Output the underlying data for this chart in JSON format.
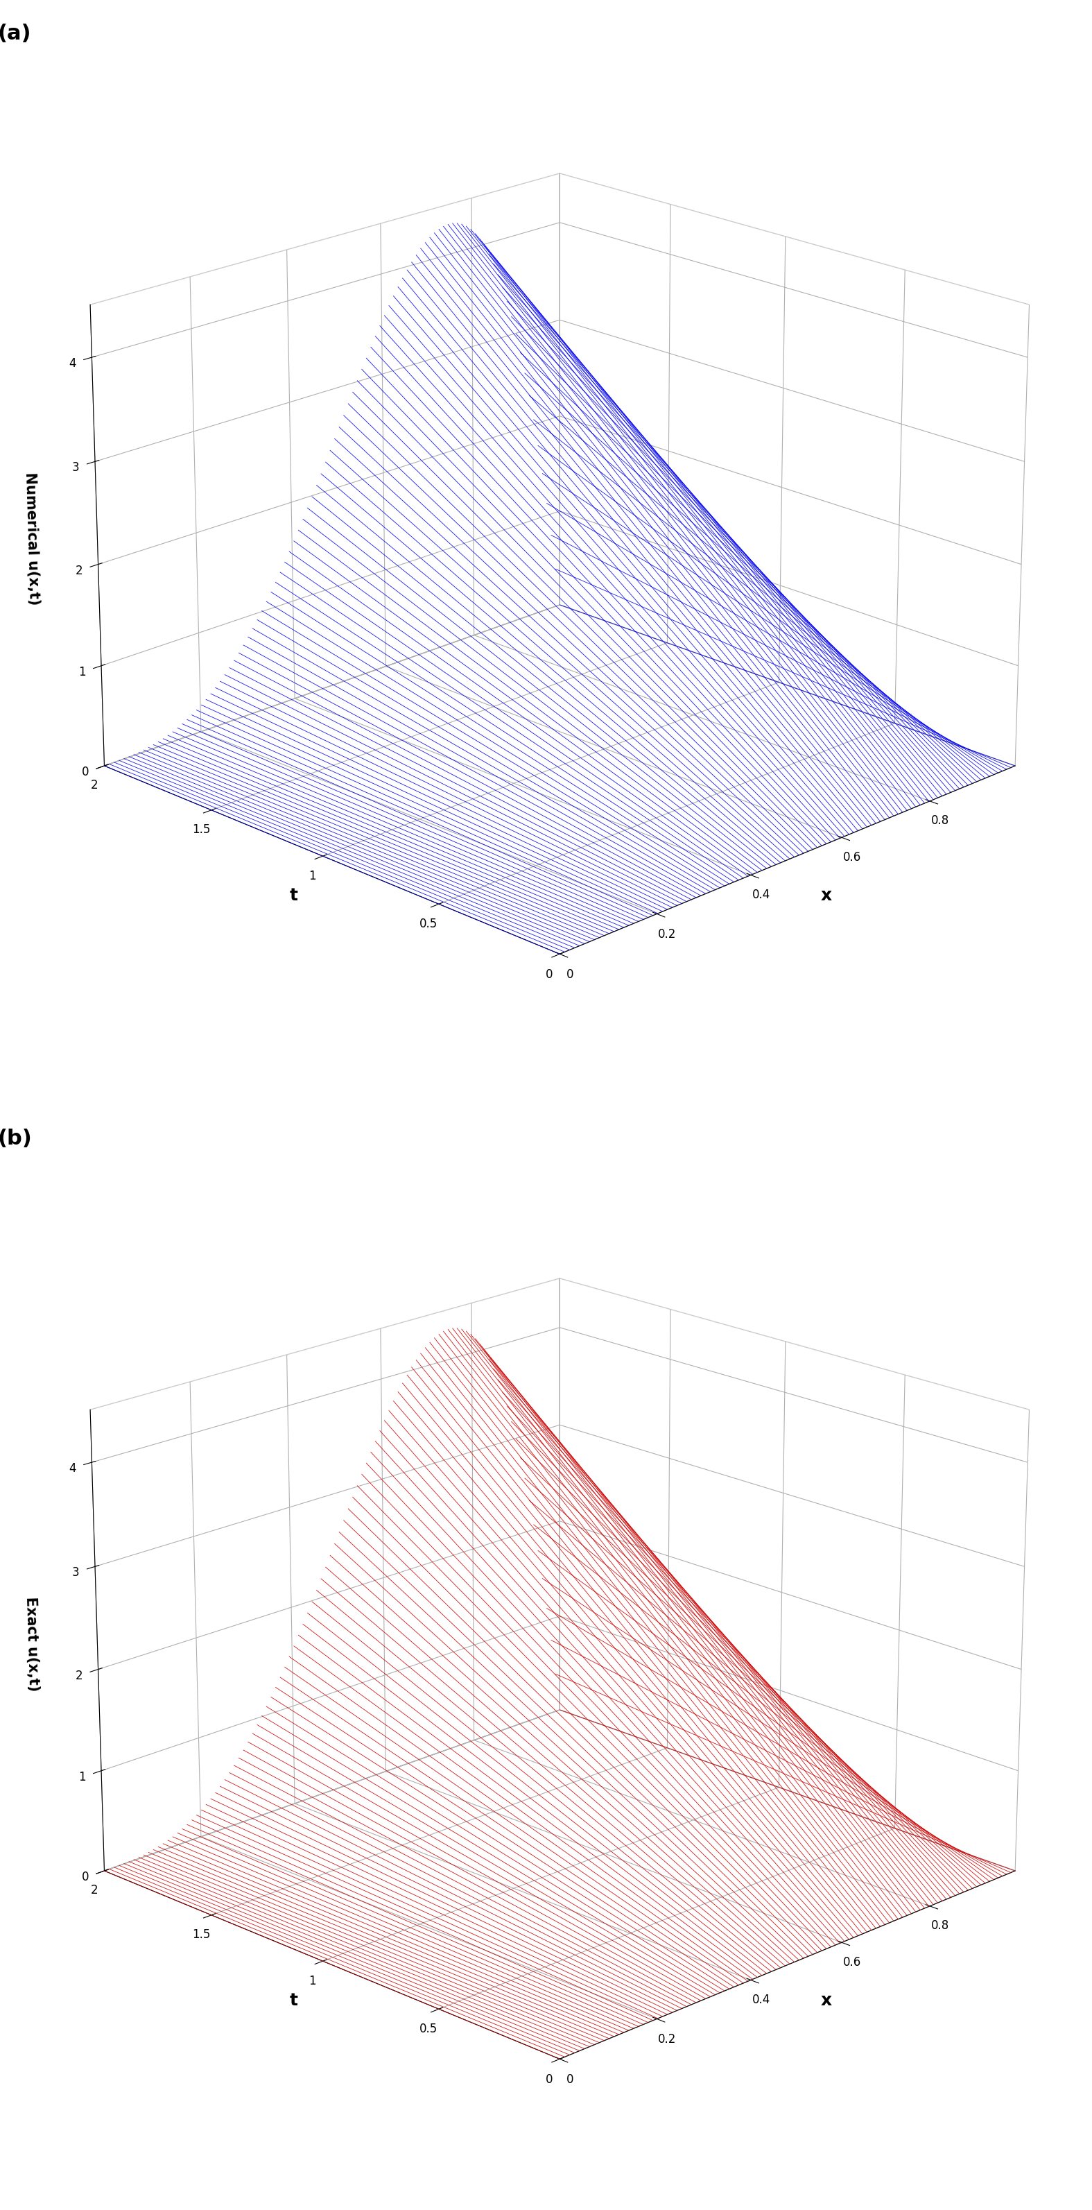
{
  "x_min": 0.0,
  "x_max": 1.0,
  "t_min": 0.0,
  "t_max": 2.0,
  "u_min": 0.0,
  "u_max": 4.5,
  "nx": 100,
  "nt": 100,
  "panel_a_color": "#0000EE",
  "panel_b_color": "#CC0000",
  "xlabel": "x",
  "ylabel": "t",
  "zlabel_a": "Numerical u(x,t)",
  "zlabel_b": "Exact u(x,t)",
  "label_a": "(a)",
  "label_b": "(b)",
  "x_ticks": [
    0,
    0.2,
    0.4,
    0.6,
    0.8
  ],
  "t_ticks": [
    0,
    0.5,
    1,
    1.5,
    2
  ],
  "z_ticks": [
    0,
    1,
    2,
    3,
    4
  ],
  "line_width": 0.6,
  "background_color": "#ffffff",
  "grid_color": "#aaaaaa",
  "C": 20.4,
  "p": 3,
  "q": 1,
  "elev": 20,
  "azim": -135
}
